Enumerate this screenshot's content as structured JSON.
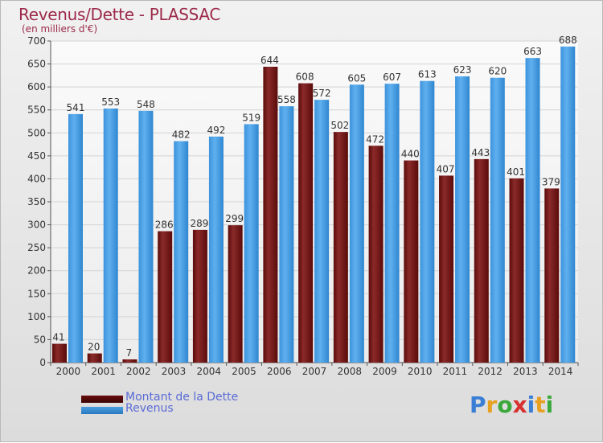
{
  "header": {
    "title": "Revenus/Dette - PLASSAC",
    "subtitle": "(en milliers d'€)"
  },
  "chart_data": {
    "type": "bar",
    "title": "Revenus/Dette - PLASSAC",
    "subtitle": "(en milliers d'€)",
    "xlabel": "",
    "ylabel": "",
    "categories": [
      "2000",
      "2001",
      "2002",
      "2003",
      "2004",
      "2005",
      "2006",
      "2007",
      "2008",
      "2009",
      "2010",
      "2011",
      "2012",
      "2013",
      "2014"
    ],
    "series": [
      {
        "name": "Montant de la Dette",
        "color": "#8b1a1a",
        "values": [
          41,
          20,
          7,
          286,
          289,
          299,
          644,
          608,
          502,
          472,
          440,
          407,
          443,
          401,
          379
        ]
      },
      {
        "name": "Revenus",
        "color": "#4a9fe0",
        "values": [
          541,
          553,
          548,
          482,
          492,
          519,
          558,
          572,
          605,
          607,
          613,
          623,
          620,
          663,
          688
        ]
      }
    ],
    "ylim": [
      0,
      700
    ],
    "yticks": [
      0,
      50,
      100,
      150,
      200,
      250,
      300,
      350,
      400,
      450,
      500,
      550,
      600,
      650,
      700
    ],
    "grid": true,
    "legend": "bottom-left"
  },
  "legend": {
    "items": [
      {
        "label": "Montant de la Dette",
        "color": "#6b0d0d"
      },
      {
        "label": "Revenus",
        "color": "#4a9fe0"
      }
    ]
  },
  "logo": {
    "text": "Proxiti",
    "letters": [
      "P",
      "r",
      "o",
      "x",
      "i",
      "t",
      "i"
    ],
    "colors": [
      "#3a7fd5",
      "#e8a020",
      "#3aa83a",
      "#d83030",
      "#3a7fd5",
      "#e8a020",
      "#3aa83a"
    ]
  }
}
